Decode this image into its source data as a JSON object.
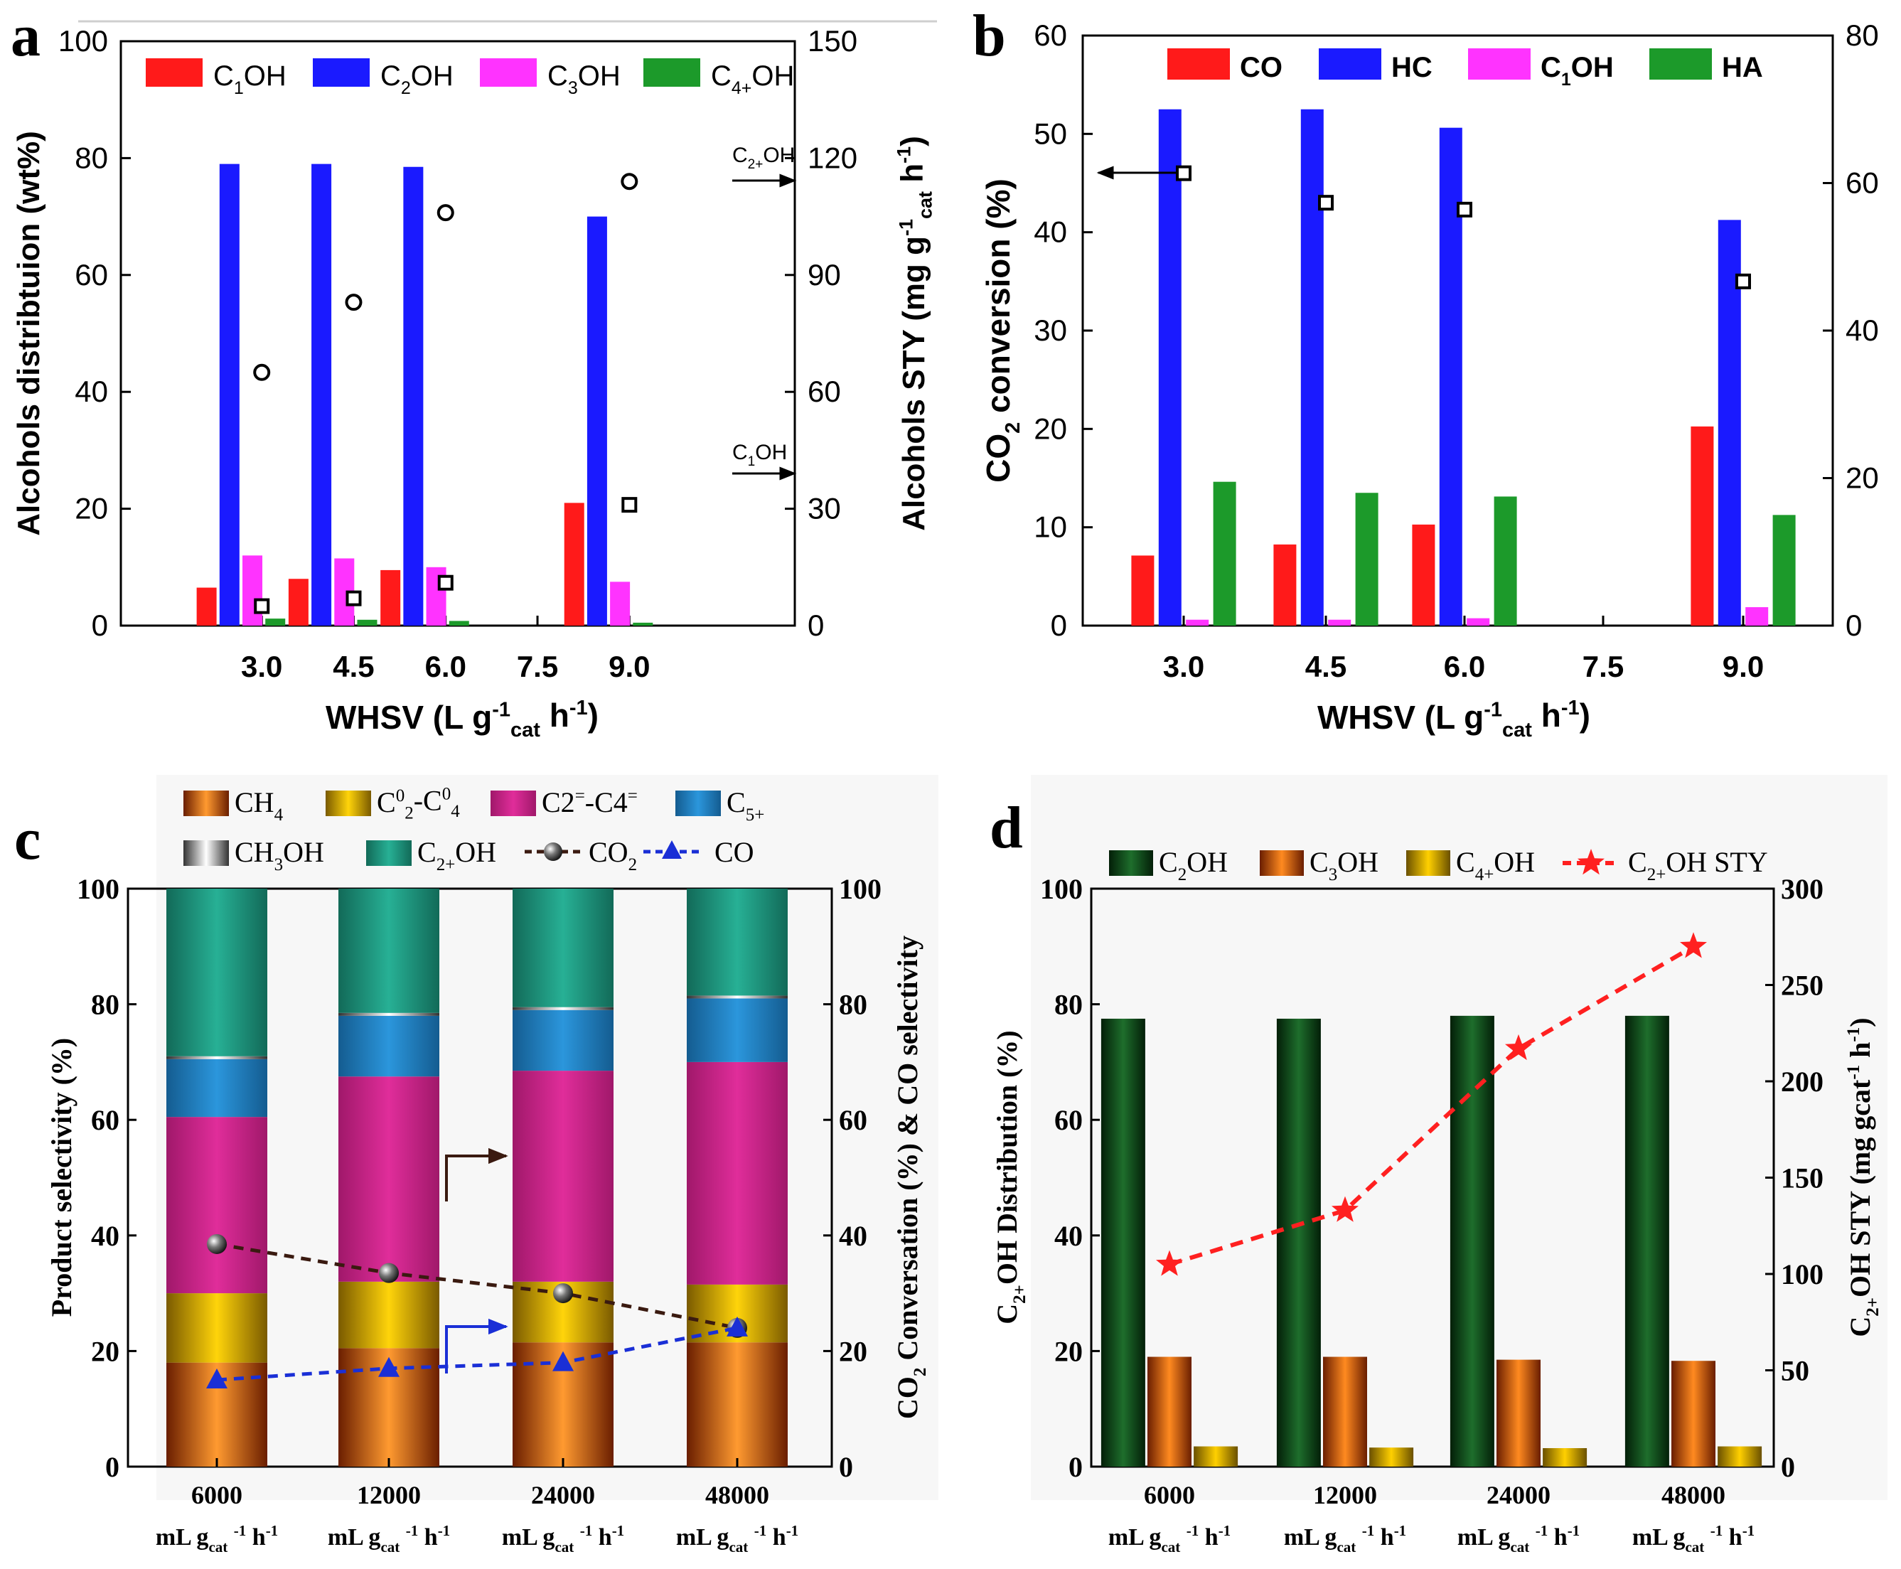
{
  "colors": {
    "red": "#ff1a1a",
    "blue": "#1a1aff",
    "magenta": "#ff33ff",
    "green": "#1c9a2a",
    "ch4": "#f07f20",
    "c2c4": "#f5c400",
    "c2c4ene": "#d6268f",
    "c5": "#1f83c8",
    "c2ohteal": "#1f9c85",
    "darkgreen": "#0f4f1a",
    "c3oh": "#e86a10",
    "c4oh": "#e7c000",
    "sty": "#ff2020",
    "co2line": "#3a1a10",
    "coline": "#1a2fd6"
  },
  "chart_data": [
    {
      "panel": "a",
      "type": "bar",
      "categories": [
        "3.0",
        "4.5",
        "6.0",
        "7.5",
        "9.0"
      ],
      "xlabel": "WHSV (L g",
      "xlabel_sup": "-1",
      "xlabel_sub": "cat",
      "xlabel_tail": " h",
      "xlabel_sup2": "-1",
      "xlabel_end": ")",
      "ylabel": "Alcohols distribtuion (wt%)",
      "ylabel2": "Alcohols STY (mg g",
      "ylabel2_sub": "cat",
      "ylabel2_sup": "-1",
      "ylabel2_tail": " h",
      "ylabel2_sup2": "-1",
      "ylabel2_end": ")",
      "ylim": [
        0,
        100
      ],
      "y2lim": [
        0,
        150
      ],
      "yticks": [
        "0",
        "20",
        "40",
        "60",
        "80",
        "100"
      ],
      "y2ticks": [
        "0",
        "30",
        "60",
        "90",
        "120",
        "150"
      ],
      "legend": [
        {
          "base": "C",
          "sub": "1",
          "tail": "OH",
          "color": "#ff1a1a"
        },
        {
          "base": "C",
          "sub": "2",
          "tail": "OH",
          "color": "#1a1aff"
        },
        {
          "base": "C",
          "sub": "3",
          "tail": "OH",
          "color": "#ff33ff"
        },
        {
          "base": "C",
          "sub": "4+",
          "tail": "OH",
          "color": "#1c9a2a"
        }
      ],
      "series": [
        {
          "name": "C1OH",
          "values": [
            6.5,
            8,
            9.5,
            null,
            21
          ]
        },
        {
          "name": "C2OH",
          "values": [
            79,
            79,
            78.5,
            null,
            70
          ]
        },
        {
          "name": "C3OH",
          "values": [
            12,
            11.5,
            10,
            null,
            7.5
          ]
        },
        {
          "name": "C4+OH",
          "values": [
            1.2,
            1,
            0.8,
            null,
            0.5
          ]
        }
      ],
      "sty_c2oh": [
        65,
        83,
        106,
        null,
        114
      ],
      "sty_c1oh": [
        5,
        7,
        11,
        null,
        31
      ],
      "annotation_c2": {
        "base": "C",
        "sub": "2+",
        "tail": "OH"
      },
      "annotation_c1": {
        "base": "C",
        "sub": "1",
        "tail": "OH"
      }
    },
    {
      "panel": "b",
      "type": "bar",
      "categories": [
        "3.0",
        "4.5",
        "6.0",
        "7.5",
        "9.0"
      ],
      "xlabel": "WHSV (L g",
      "xlabel_sup": "-1",
      "xlabel_sub": "cat",
      "xlabel_tail": " h",
      "xlabel_sup2": "-1",
      "xlabel_end": ")",
      "ylabel": "CO",
      "ylabel_sub": "2",
      "ylabel_tail": " conversion (%)",
      "ylim": [
        0,
        60
      ],
      "y2lim": [
        0,
        80
      ],
      "yticks": [
        "0",
        "10",
        "20",
        "30",
        "40",
        "50",
        "60"
      ],
      "y2ticks": [
        "0",
        "20",
        "40",
        "60",
        "80"
      ],
      "legend": [
        {
          "base": "CO",
          "sub": "",
          "tail": "",
          "color": "#ff1a1a"
        },
        {
          "base": "HC",
          "sub": "",
          "tail": "",
          "color": "#1a1aff"
        },
        {
          "base": "C",
          "sub": "1",
          "tail": "OH",
          "color": "#ff33ff"
        },
        {
          "base": "HA",
          "sub": "",
          "tail": "",
          "color": "#1c9a2a"
        }
      ],
      "series": [
        {
          "name": "CO",
          "values": [
            9.5,
            11,
            13.7,
            null,
            27
          ]
        },
        {
          "name": "HC",
          "values": [
            70,
            70,
            67.5,
            null,
            55
          ]
        },
        {
          "name": "C1OH",
          "values": [
            0.8,
            0.8,
            1,
            null,
            2.5
          ]
        },
        {
          "name": "HA",
          "values": [
            19.5,
            18,
            17.5,
            null,
            15
          ]
        }
      ],
      "co2_conversion": [
        46,
        43,
        42.3,
        null,
        35
      ]
    },
    {
      "panel": "c",
      "type": "bar",
      "stacked": true,
      "categories": [
        "6000",
        "12000",
        "24000",
        "48000"
      ],
      "cat_unit": "mL g",
      "cat_unit_sub": "cat",
      "cat_unit_sup": "-1",
      "cat_unit_tail": " h",
      "cat_unit_sup2": "-1",
      "ylabel": "Product selectivity (%)",
      "ylabel2": "CO",
      "ylabel2_sub": "2",
      "ylabel2_tail": " Conversation (%) & CO selectivity",
      "ylim": [
        0,
        100
      ],
      "y2lim": [
        0,
        100
      ],
      "yticks": [
        "0",
        "20",
        "40",
        "60",
        "80",
        "100"
      ],
      "y2ticks": [
        "0",
        "20",
        "40",
        "60",
        "80",
        "100"
      ],
      "legend": [
        {
          "base": "CH",
          "sub": "4",
          "sup": "",
          "tail": "",
          "color": "#f07f20"
        },
        {
          "base": "C",
          "sub": "2",
          "sup": "0",
          "tail": "-C",
          "sub2": "4",
          "sup2": "0",
          "color": "#f5c400"
        },
        {
          "base": "C2",
          "sub": "",
          "sup": "=",
          "tail": "-C4",
          "sub2": "",
          "sup2": "=",
          "color": "#d6268f"
        },
        {
          "base": "C",
          "sub": "5+",
          "sup": "",
          "tail": "",
          "color": "#1f83c8"
        },
        {
          "base": "CH",
          "sub": "3",
          "sup": "",
          "tail": "OH",
          "color": "#dddddd"
        },
        {
          "base": "C",
          "sub": "2+",
          "sup": "",
          "tail": "OH",
          "color": "#1f9c85"
        }
      ],
      "legend_lines": [
        {
          "base": "CO",
          "sub": "2",
          "color": "#3a1a10"
        },
        {
          "base": "CO",
          "sub": "",
          "color": "#1a2fd6"
        }
      ],
      "series": [
        {
          "name": "CH4",
          "values": [
            18,
            20.5,
            21.5,
            21.5
          ]
        },
        {
          "name": "C2-C4 paraffins",
          "values": [
            12,
            11.5,
            10.5,
            10
          ]
        },
        {
          "name": "C2=-C4= olefins",
          "values": [
            30.5,
            35.5,
            36.5,
            38.5
          ]
        },
        {
          "name": "C5+",
          "values": [
            10,
            10.5,
            10.5,
            11
          ]
        },
        {
          "name": "CH3OH",
          "values": [
            0.5,
            0.5,
            0.5,
            0.5
          ]
        },
        {
          "name": "C2+OH",
          "values": [
            29,
            21.5,
            20.5,
            18.5
          ]
        }
      ],
      "co2_conversion": [
        38.5,
        33.5,
        30,
        24
      ],
      "co_selectivity": [
        15,
        17,
        18,
        24
      ]
    },
    {
      "panel": "d",
      "type": "bar",
      "categories": [
        "6000",
        "12000",
        "24000",
        "48000"
      ],
      "cat_unit": "mL g",
      "cat_unit_sub": "cat",
      "cat_unit_sup": "-1",
      "cat_unit_tail": " h",
      "cat_unit_sup2": "-1",
      "ylabel": "C",
      "ylabel_sub": "2+",
      "ylabel_tail": "OH  Distribution (%)",
      "ylabel2": "C",
      "ylabel2_sub": "2+",
      "ylabel2_tail": "OH  STY  (mg gcat",
      "ylabel2_sup": "-1",
      "ylabel2_tail2": " h",
      "ylabel2_sup2": "-1",
      "ylabel2_end": ")",
      "ylim": [
        0,
        100
      ],
      "y2lim": [
        0,
        300
      ],
      "yticks": [
        "0",
        "20",
        "40",
        "60",
        "80",
        "100"
      ],
      "y2ticks": [
        "0",
        "50",
        "100",
        "150",
        "200",
        "250",
        "300"
      ],
      "legend": [
        {
          "base": "C",
          "sub": "2",
          "tail": "OH",
          "color": "#0f4f1a"
        },
        {
          "base": "C",
          "sub": "3",
          "tail": "OH",
          "color": "#e86a10"
        },
        {
          "base": "C",
          "sub": "4+",
          "tail": "OH",
          "color": "#e7c000"
        },
        {
          "base": "C",
          "sub": "2+",
          "tail": "OH STY",
          "color": "#ff2020"
        }
      ],
      "series": [
        {
          "name": "C2OH",
          "values": [
            77.5,
            77.5,
            78,
            78
          ]
        },
        {
          "name": "C3OH",
          "values": [
            19,
            19,
            18.5,
            18.3
          ]
        },
        {
          "name": "C4+OH",
          "values": [
            3.5,
            3.3,
            3.2,
            3.5
          ]
        }
      ],
      "sty": [
        105,
        133,
        217,
        270
      ]
    }
  ],
  "panel_labels": {
    "a": "a",
    "b": "b",
    "c": "c",
    "d": "d"
  }
}
